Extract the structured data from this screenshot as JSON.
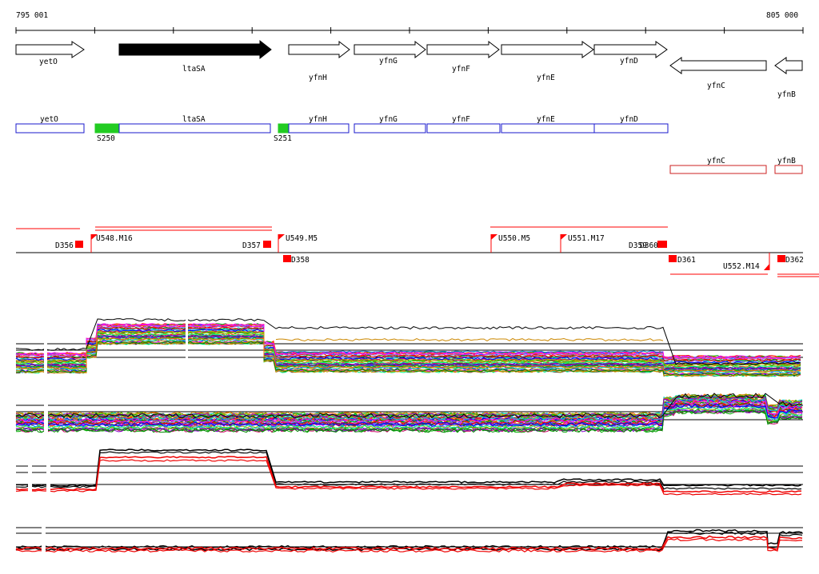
{
  "axis": {
    "start_label": "795 001",
    "end_label": "805 000"
  },
  "genes": [
    {
      "name": "yetO",
      "strand": "+",
      "highlight": false
    },
    {
      "name": "ltaSA",
      "strand": "+",
      "highlight": true
    },
    {
      "name": "yfnH",
      "strand": "+",
      "highlight": false
    },
    {
      "name": "yfnG",
      "strand": "+",
      "highlight": false
    },
    {
      "name": "yfnF",
      "strand": "+",
      "highlight": false
    },
    {
      "name": "yfnE",
      "strand": "+",
      "highlight": false
    },
    {
      "name": "yfnD",
      "strand": "+",
      "highlight": false
    },
    {
      "name": "yfnC",
      "strand": "-",
      "highlight": false
    },
    {
      "name": "yfnB",
      "strand": "-",
      "highlight": false
    }
  ],
  "sites": [
    "S250",
    "S251"
  ],
  "features": [
    "D356",
    "U548.M16",
    "D357",
    "D358",
    "U549.M5",
    "U550.M5",
    "U551.M17",
    "D359",
    "D360",
    "D361",
    "U552.M14",
    "D362"
  ],
  "colors": {
    "gene_box_forward": "#1a1acc",
    "gene_box_reverse": "#cc2222",
    "site_green": "#22cc22",
    "feature_red": "#ff0000",
    "highlight_gene": "#000000"
  }
}
